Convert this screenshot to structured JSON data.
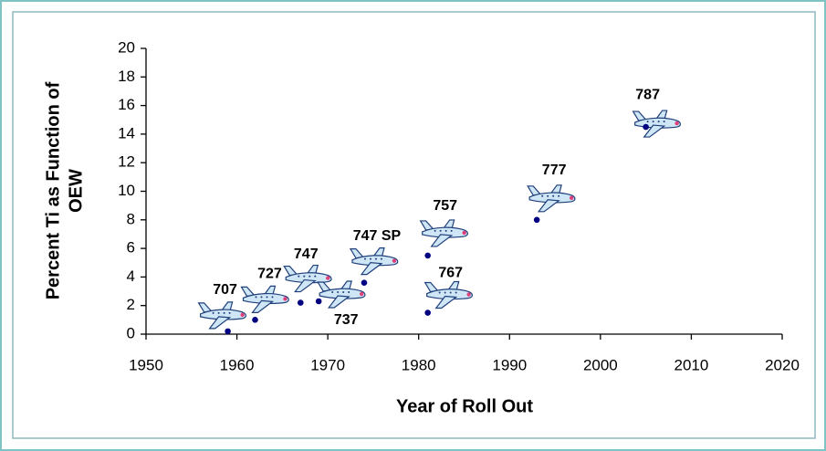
{
  "chart_data": {
    "type": "scatter",
    "xlabel": "Year of Roll Out",
    "ylabel": [
      "Percent Ti as Function of",
      "OEW"
    ],
    "point_labels": [
      "707",
      "727",
      "747",
      "737",
      "747 SP",
      "757",
      "767",
      "777",
      "787"
    ],
    "x": [
      1959,
      1962,
      1967,
      1969,
      1974,
      1981,
      1981,
      1993,
      2005
    ],
    "values": [
      0.2,
      1.0,
      2.2,
      2.3,
      3.6,
      5.5,
      1.5,
      8.0,
      14.5
    ],
    "color": "#000080",
    "xlim": [
      1950,
      2020
    ],
    "xticks": [
      1950,
      1960,
      1970,
      1980,
      1990,
      2000,
      2010,
      2020
    ],
    "ylim": [
      0,
      20
    ],
    "yticks": [
      0,
      2,
      4,
      6,
      8,
      10,
      12,
      14,
      16,
      18,
      20
    ]
  }
}
